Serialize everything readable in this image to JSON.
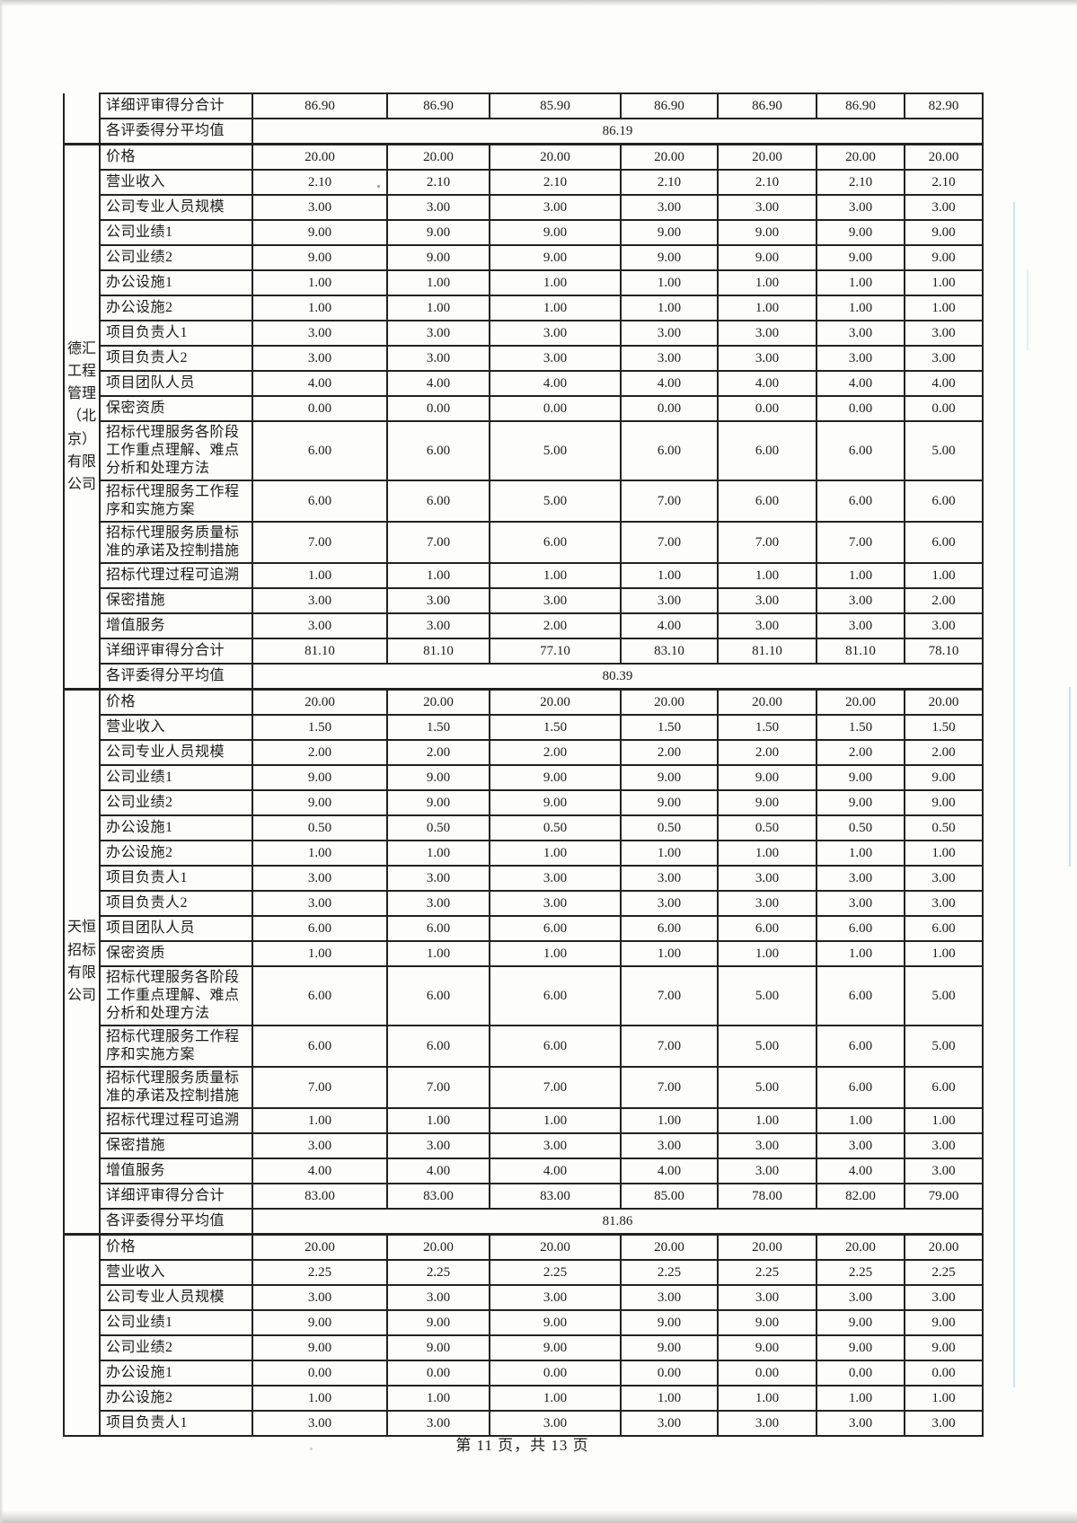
{
  "document": {
    "kind": "scanned bid evaluation detailed score sheet page",
    "footer_text": "第 11 页，共 13 页",
    "page_number": "11",
    "total_pages": "13"
  },
  "colors": {
    "table_border": "#222222",
    "scan_line_blue": "#6ec3d7",
    "page_background": "#fdfdfc",
    "text": "#1b1b1b"
  },
  "table": {
    "score_column_count": 7,
    "blocks": [
      {
        "company": "",
        "rows": [
          {
            "label": "详细评审得分合计",
            "values": [
              "86.90",
              "86.90",
              "85.90",
              "86.90",
              "86.90",
              "86.90",
              "82.90"
            ]
          }
        ],
        "average": {
          "label": "各评委得分平均值",
          "value": "86.19"
        }
      },
      {
        "company": "德汇工程管理（北京）有限公司",
        "rows": [
          {
            "label": "价格",
            "values": [
              "20.00",
              "20.00",
              "20.00",
              "20.00",
              "20.00",
              "20.00",
              "20.00"
            ]
          },
          {
            "label": "营业收入",
            "values": [
              "2.10",
              "2.10",
              "2.10",
              "2.10",
              "2.10",
              "2.10",
              "2.10"
            ]
          },
          {
            "label": "公司专业人员规模",
            "values": [
              "3.00",
              "3.00",
              "3.00",
              "3.00",
              "3.00",
              "3.00",
              "3.00"
            ]
          },
          {
            "label": "公司业绩1",
            "values": [
              "9.00",
              "9.00",
              "9.00",
              "9.00",
              "9.00",
              "9.00",
              "9.00"
            ]
          },
          {
            "label": "公司业绩2",
            "values": [
              "9.00",
              "9.00",
              "9.00",
              "9.00",
              "9.00",
              "9.00",
              "9.00"
            ]
          },
          {
            "label": "办公设施1",
            "values": [
              "1.00",
              "1.00",
              "1.00",
              "1.00",
              "1.00",
              "1.00",
              "1.00"
            ]
          },
          {
            "label": "办公设施2",
            "values": [
              "1.00",
              "1.00",
              "1.00",
              "1.00",
              "1.00",
              "1.00",
              "1.00"
            ]
          },
          {
            "label": "项目负责人1",
            "values": [
              "3.00",
              "3.00",
              "3.00",
              "3.00",
              "3.00",
              "3.00",
              "3.00"
            ]
          },
          {
            "label": "项目负责人2",
            "values": [
              "3.00",
              "3.00",
              "3.00",
              "3.00",
              "3.00",
              "3.00",
              "3.00"
            ]
          },
          {
            "label": "项目团队人员",
            "values": [
              "4.00",
              "4.00",
              "4.00",
              "4.00",
              "4.00",
              "4.00",
              "4.00"
            ]
          },
          {
            "label": "保密资质",
            "values": [
              "0.00",
              "0.00",
              "0.00",
              "0.00",
              "0.00",
              "0.00",
              "0.00"
            ]
          },
          {
            "label": "招标代理服务各阶段工作重点理解、难点分析和处理方法",
            "values": [
              "6.00",
              "6.00",
              "5.00",
              "6.00",
              "6.00",
              "6.00",
              "5.00"
            ]
          },
          {
            "label": "招标代理服务工作程序和实施方案",
            "values": [
              "6.00",
              "6.00",
              "5.00",
              "7.00",
              "6.00",
              "6.00",
              "6.00"
            ]
          },
          {
            "label": "招标代理服务质量标准的承诺及控制措施",
            "values": [
              "7.00",
              "7.00",
              "6.00",
              "7.00",
              "7.00",
              "7.00",
              "6.00"
            ]
          },
          {
            "label": "招标代理过程可追溯",
            "values": [
              "1.00",
              "1.00",
              "1.00",
              "1.00",
              "1.00",
              "1.00",
              "1.00"
            ]
          },
          {
            "label": "保密措施",
            "values": [
              "3.00",
              "3.00",
              "3.00",
              "3.00",
              "3.00",
              "3.00",
              "2.00"
            ]
          },
          {
            "label": "增值服务",
            "values": [
              "3.00",
              "3.00",
              "2.00",
              "4.00",
              "3.00",
              "3.00",
              "3.00"
            ]
          },
          {
            "label": "详细评审得分合计",
            "values": [
              "81.10",
              "81.10",
              "77.10",
              "83.10",
              "81.10",
              "81.10",
              "78.10"
            ]
          }
        ],
        "average": {
          "label": "各评委得分平均值",
          "value": "80.39"
        }
      },
      {
        "company": "天恒招标有限公司",
        "rows": [
          {
            "label": "价格",
            "values": [
              "20.00",
              "20.00",
              "20.00",
              "20.00",
              "20.00",
              "20.00",
              "20.00"
            ]
          },
          {
            "label": "营业收入",
            "values": [
              "1.50",
              "1.50",
              "1.50",
              "1.50",
              "1.50",
              "1.50",
              "1.50"
            ]
          },
          {
            "label": "公司专业人员规模",
            "values": [
              "2.00",
              "2.00",
              "2.00",
              "2.00",
              "2.00",
              "2.00",
              "2.00"
            ]
          },
          {
            "label": "公司业绩1",
            "values": [
              "9.00",
              "9.00",
              "9.00",
              "9.00",
              "9.00",
              "9.00",
              "9.00"
            ]
          },
          {
            "label": "公司业绩2",
            "values": [
              "9.00",
              "9.00",
              "9.00",
              "9.00",
              "9.00",
              "9.00",
              "9.00"
            ]
          },
          {
            "label": "办公设施1",
            "values": [
              "0.50",
              "0.50",
              "0.50",
              "0.50",
              "0.50",
              "0.50",
              "0.50"
            ]
          },
          {
            "label": "办公设施2",
            "values": [
              "1.00",
              "1.00",
              "1.00",
              "1.00",
              "1.00",
              "1.00",
              "1.00"
            ]
          },
          {
            "label": "项目负责人1",
            "values": [
              "3.00",
              "3.00",
              "3.00",
              "3.00",
              "3.00",
              "3.00",
              "3.00"
            ]
          },
          {
            "label": "项目负责人2",
            "values": [
              "3.00",
              "3.00",
              "3.00",
              "3.00",
              "3.00",
              "3.00",
              "3.00"
            ]
          },
          {
            "label": "项目团队人员",
            "values": [
              "6.00",
              "6.00",
              "6.00",
              "6.00",
              "6.00",
              "6.00",
              "6.00"
            ]
          },
          {
            "label": "保密资质",
            "values": [
              "1.00",
              "1.00",
              "1.00",
              "1.00",
              "1.00",
              "1.00",
              "1.00"
            ]
          },
          {
            "label": "招标代理服务各阶段工作重点理解、难点分析和处理方法",
            "values": [
              "6.00",
              "6.00",
              "6.00",
              "7.00",
              "5.00",
              "6.00",
              "5.00"
            ]
          },
          {
            "label": "招标代理服务工作程序和实施方案",
            "values": [
              "6.00",
              "6.00",
              "6.00",
              "7.00",
              "5.00",
              "6.00",
              "5.00"
            ]
          },
          {
            "label": "招标代理服务质量标准的承诺及控制措施",
            "values": [
              "7.00",
              "7.00",
              "7.00",
              "7.00",
              "5.00",
              "6.00",
              "6.00"
            ]
          },
          {
            "label": "招标代理过程可追溯",
            "values": [
              "1.00",
              "1.00",
              "1.00",
              "1.00",
              "1.00",
              "1.00",
              "1.00"
            ]
          },
          {
            "label": "保密措施",
            "values": [
              "3.00",
              "3.00",
              "3.00",
              "3.00",
              "3.00",
              "3.00",
              "3.00"
            ]
          },
          {
            "label": "增值服务",
            "values": [
              "4.00",
              "4.00",
              "4.00",
              "4.00",
              "3.00",
              "4.00",
              "3.00"
            ]
          },
          {
            "label": "详细评审得分合计",
            "values": [
              "83.00",
              "83.00",
              "83.00",
              "85.00",
              "78.00",
              "82.00",
              "79.00"
            ]
          }
        ],
        "average": {
          "label": "各评委得分平均值",
          "value": "81.86"
        }
      },
      {
        "company": "",
        "rows": [
          {
            "label": "价格",
            "values": [
              "20.00",
              "20.00",
              "20.00",
              "20.00",
              "20.00",
              "20.00",
              "20.00"
            ]
          },
          {
            "label": "营业收入",
            "values": [
              "2.25",
              "2.25",
              "2.25",
              "2.25",
              "2.25",
              "2.25",
              "2.25"
            ]
          },
          {
            "label": "公司专业人员规模",
            "values": [
              "3.00",
              "3.00",
              "3.00",
              "3.00",
              "3.00",
              "3.00",
              "3.00"
            ]
          },
          {
            "label": "公司业绩1",
            "values": [
              "9.00",
              "9.00",
              "9.00",
              "9.00",
              "9.00",
              "9.00",
              "9.00"
            ]
          },
          {
            "label": "公司业绩2",
            "values": [
              "9.00",
              "9.00",
              "9.00",
              "9.00",
              "9.00",
              "9.00",
              "9.00"
            ]
          },
          {
            "label": "办公设施1",
            "values": [
              "0.00",
              "0.00",
              "0.00",
              "0.00",
              "0.00",
              "0.00",
              "0.00"
            ]
          },
          {
            "label": "办公设施2",
            "values": [
              "1.00",
              "1.00",
              "1.00",
              "1.00",
              "1.00",
              "1.00",
              "1.00"
            ]
          },
          {
            "label": "项目负责人1",
            "values": [
              "3.00",
              "3.00",
              "3.00",
              "3.00",
              "3.00",
              "3.00",
              "3.00"
            ]
          }
        ],
        "average": null
      }
    ]
  }
}
